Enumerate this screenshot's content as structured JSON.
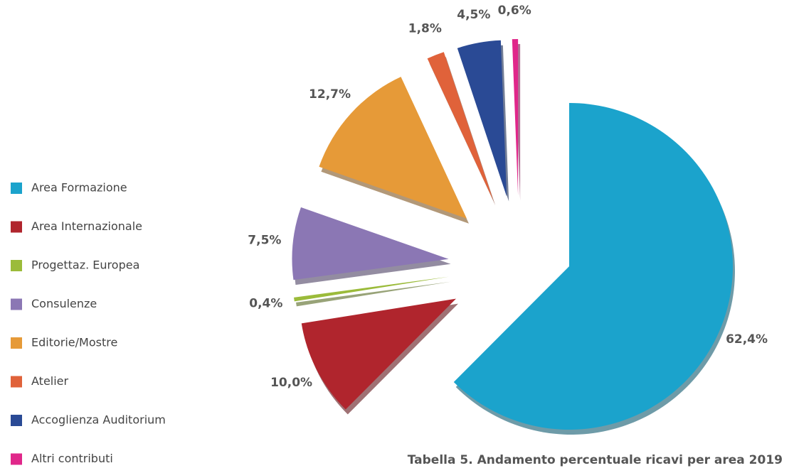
{
  "chart_data": {
    "type": "pie",
    "title": "Tabella 5. Andamento percentuale ricavi per area 2019",
    "categories": [
      "Area Formazione",
      "Area Internazionale",
      "Progettaz. Europea",
      "Consulenze",
      "Editorie/Mostre",
      "Atelier",
      "Accoglienza Auditorium",
      "Altri contributi"
    ],
    "values": [
      62.4,
      10.0,
      0.4,
      7.5,
      12.7,
      1.8,
      4.5,
      0.6
    ],
    "value_labels": [
      "62,4%",
      "10,0%",
      "0,4%",
      "7,5%",
      "12,7%",
      "1,8%",
      "4,5%",
      "0,6%"
    ],
    "colors": [
      "#1ba3cc",
      "#b0252d",
      "#9bbb3a",
      "#8b77b4",
      "#e69a38",
      "#e0623a",
      "#2a4a95",
      "#e0278a"
    ],
    "legend": "left"
  }
}
